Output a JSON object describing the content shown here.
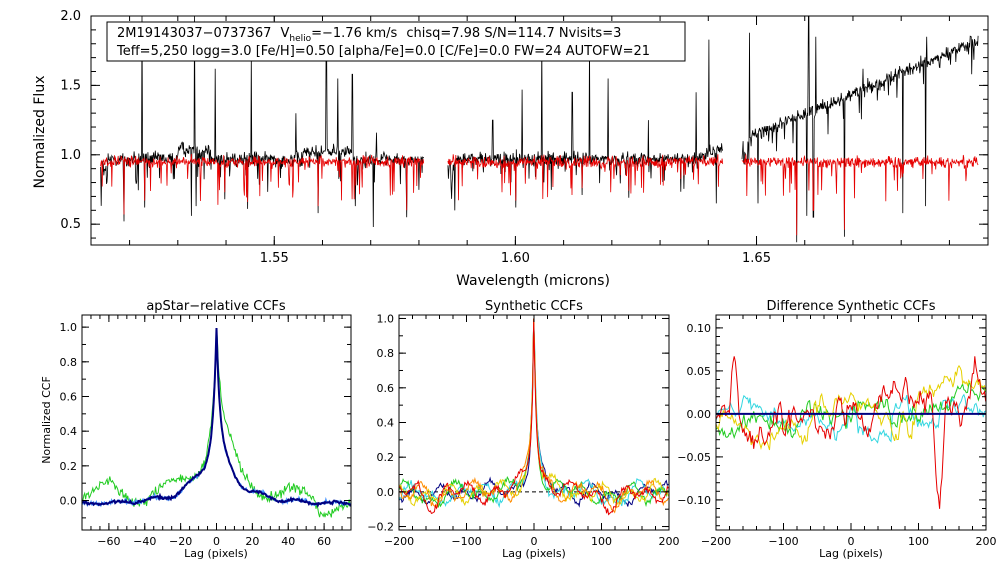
{
  "chart_data": [
    {
      "id": "spectrum",
      "type": "line",
      "title": "",
      "xlabel": "Wavelength (microns)",
      "ylabel": "Normalized Flux",
      "xlim": [
        1.512,
        1.698
      ],
      "ylim": [
        0.35,
        2.0
      ],
      "xticks": [
        1.55,
        1.6,
        1.65
      ],
      "xtick_labels": [
        "1.55",
        "1.60",
        "1.65"
      ],
      "yticks": [
        0.5,
        1.0,
        1.5,
        2.0
      ],
      "ytick_labels": [
        "0.5",
        "1.0",
        "1.5",
        "2.0"
      ],
      "info_box": {
        "star_id": "2M19143037−0737367",
        "v_label": "V",
        "v_sub": "helio",
        "v_value": "=−1.76 km/s",
        "stats": "chisq=7.98  S/N=114.7  Nvisits=3",
        "params": "Teff=5,250 logg=3.0 [Fe/H]=0.50 [alpha/Fe]=0.0 [C/Fe]=0.0 FW=24 AUTOFW=21"
      },
      "chips": [
        [
          1.514,
          1.581
        ],
        [
          1.586,
          1.643
        ],
        [
          1.647,
          1.696
        ]
      ],
      "series": [
        {
          "name": "observed",
          "color": "#000000",
          "baseline": 0.97,
          "noise": 0.05
        },
        {
          "name": "model",
          "color": "#e60000",
          "baseline": 0.95,
          "noise": 0.04
        }
      ],
      "spikes": [
        {
          "x": 1.5226,
          "y": 2.0
        },
        {
          "x": 1.5335,
          "y": 2.0
        },
        {
          "x": 1.5378,
          "y": 1.62
        },
        {
          "x": 1.5452,
          "y": 1.72
        },
        {
          "x": 1.5545,
          "y": 1.3
        },
        {
          "x": 1.5608,
          "y": 1.82
        },
        {
          "x": 1.5632,
          "y": 1.55
        },
        {
          "x": 1.5662,
          "y": 1.58
        },
        {
          "x": 1.5712,
          "y": 1.16
        },
        {
          "x": 1.5953,
          "y": 1.25
        },
        {
          "x": 1.6014,
          "y": 1.47
        },
        {
          "x": 1.6055,
          "y": 1.83
        },
        {
          "x": 1.6118,
          "y": 1.45
        },
        {
          "x": 1.6154,
          "y": 1.85
        },
        {
          "x": 1.6192,
          "y": 1.55
        },
        {
          "x": 1.6276,
          "y": 1.25
        },
        {
          "x": 1.6375,
          "y": 1.45
        },
        {
          "x": 1.6401,
          "y": 1.83
        },
        {
          "x": 1.6485,
          "y": 1.88
        },
        {
          "x": 1.6554,
          "y": 1.23
        },
        {
          "x": 1.6608,
          "y": 2.0
        },
        {
          "x": 1.6623,
          "y": 1.85
        },
        {
          "x": 1.6682,
          "y": 2.0
        },
        {
          "x": 1.6721,
          "y": 1.62
        },
        {
          "x": 1.6752,
          "y": 1.48
        },
        {
          "x": 1.6788,
          "y": 1.62
        },
        {
          "x": 1.6853,
          "y": 1.85
        },
        {
          "x": 1.6898,
          "y": 1.68
        }
      ],
      "dips": [
        {
          "x": 1.5188,
          "y": 0.52
        },
        {
          "x": 1.5231,
          "y": 0.62
        },
        {
          "x": 1.5328,
          "y": 0.56
        },
        {
          "x": 1.5338,
          "y": 0.63
        },
        {
          "x": 1.5397,
          "y": 0.68
        },
        {
          "x": 1.5445,
          "y": 0.61
        },
        {
          "x": 1.5591,
          "y": 0.58
        },
        {
          "x": 1.5668,
          "y": 0.63
        },
        {
          "x": 1.5705,
          "y": 0.48
        },
        {
          "x": 1.5775,
          "y": 0.55
        },
        {
          "x": 1.6001,
          "y": 0.62
        },
        {
          "x": 1.6138,
          "y": 0.71
        },
        {
          "x": 1.6235,
          "y": 0.69
        },
        {
          "x": 1.6417,
          "y": 0.65
        },
        {
          "x": 1.6503,
          "y": 0.65
        },
        {
          "x": 1.6583,
          "y": 0.37
        },
        {
          "x": 1.6604,
          "y": 0.56
        },
        {
          "x": 1.6618,
          "y": 0.55
        },
        {
          "x": 1.6682,
          "y": 0.41
        },
        {
          "x": 1.6803,
          "y": 0.58
        },
        {
          "x": 1.6851,
          "y": 0.63
        }
      ]
    },
    {
      "id": "apstar",
      "type": "line",
      "title": "apStar−relative CCFs",
      "xlabel": "Lag (pixels)",
      "ylabel": "Normalized CCF",
      "xlim": [
        -75,
        75
      ],
      "ylim": [
        -0.17,
        1.07
      ],
      "xticks": [
        -60,
        -40,
        -20,
        0,
        20,
        40,
        60
      ],
      "xtick_labels": [
        "−60",
        "−40",
        "−20",
        "0",
        "20",
        "40",
        "60"
      ],
      "yticks": [
        0.0,
        0.2,
        0.4,
        0.6,
        0.8,
        1.0
      ],
      "ytick_labels": [
        "0.0",
        "0.2",
        "0.4",
        "0.6",
        "0.8",
        "1.0"
      ],
      "series": [
        {
          "name": "dark-blue",
          "color": "#000080",
          "width": 2.0,
          "wing": "narrow",
          "wiggle": 0.008
        },
        {
          "name": "light-blue",
          "color": "#4090ff",
          "width": 1.5,
          "wing": "narrow",
          "wiggle": 0.012
        },
        {
          "name": "green",
          "color": "#22cc22",
          "width": 1.0,
          "wing": "broad",
          "wiggle": 0.03
        }
      ]
    },
    {
      "id": "synthetic",
      "type": "line",
      "title": "Synthetic CCFs",
      "xlabel": "Lag (pixels)",
      "ylabel": "",
      "xlim": [
        -200,
        200
      ],
      "ylim": [
        -0.22,
        1.02
      ],
      "xticks": [
        -200,
        -100,
        0,
        100,
        200
      ],
      "xtick_labels": [
        "−200",
        "−100",
        "0",
        "100",
        "200"
      ],
      "yticks": [
        -0.2,
        0.0,
        0.2,
        0.4,
        0.6,
        0.8,
        1.0
      ],
      "ytick_labels": [
        "−0.2",
        "0.0",
        "0.2",
        "0.4",
        "0.6",
        "0.8",
        "1.0"
      ],
      "zero_line": {
        "y": 0.0,
        "style": "dashed"
      },
      "series": [
        {
          "name": "navy",
          "color": "#000080"
        },
        {
          "name": "cyan",
          "color": "#33d6e0"
        },
        {
          "name": "green",
          "color": "#22cc22"
        },
        {
          "name": "yellow",
          "color": "#e6d000"
        },
        {
          "name": "orange",
          "color": "#ff8c00"
        },
        {
          "name": "red",
          "color": "#e60000"
        }
      ]
    },
    {
      "id": "difference",
      "type": "line",
      "title": "Difference Synthetic CCFs",
      "xlabel": "Lag (pixels)",
      "ylabel": "",
      "xlim": [
        -200,
        200
      ],
      "ylim": [
        -0.135,
        0.115
      ],
      "xticks": [
        -200,
        -100,
        0,
        100,
        200
      ],
      "xtick_labels": [
        "−200",
        "−100",
        "0",
        "100",
        "200"
      ],
      "yticks": [
        -0.1,
        -0.05,
        0.0,
        0.05,
        0.1
      ],
      "ytick_labels": [
        "−0.10",
        "−0.05",
        "0.00",
        "0.05",
        "0.10"
      ],
      "zero_line": {
        "y": 0.0,
        "color": "#000080",
        "style": "solid"
      },
      "series": [
        {
          "name": "cyan",
          "color": "#33d6e0",
          "amp": 0.025
        },
        {
          "name": "green",
          "color": "#22cc22",
          "amp": 0.03
        },
        {
          "name": "yellow",
          "color": "#e6d000",
          "amp": 0.028
        },
        {
          "name": "red",
          "color": "#e60000",
          "amp": 0.045
        }
      ]
    }
  ]
}
